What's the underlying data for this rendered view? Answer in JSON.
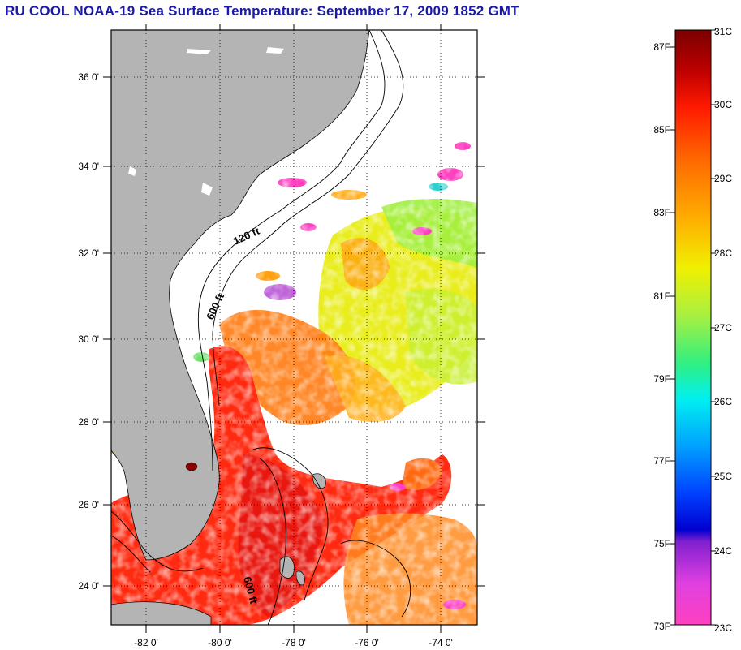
{
  "title": "RU COOL  NOAA-19  Sea Surface Temperature:  September 17, 2009 1852 GMT",
  "map": {
    "lon_ticks": [
      "-82 0'",
      "-80 0'",
      "-78 0'",
      "-76 0'",
      "-74 0'"
    ],
    "lat_ticks": [
      "36 0'",
      "34 0'",
      "32 0'",
      "30 0'",
      "28 0'",
      "26 0'",
      "24 0'"
    ],
    "contour_labels": [
      "120 ft",
      "600 ft",
      "600 ft"
    ],
    "colors": {
      "land": "#b4b4b4",
      "cloud": "#ffffff",
      "ocean_warm": "#ff2a10",
      "ocean_mid": "#ff9a10",
      "ocean_cool": "#e8f000"
    }
  },
  "colorbar": {
    "fahrenheit_labels": [
      "87F",
      "85F",
      "83F",
      "81F",
      "79F",
      "77F",
      "75F",
      "73F"
    ],
    "celsius_labels": [
      "31C",
      "30C",
      "29C",
      "28C",
      "27C",
      "26C",
      "25C",
      "24C",
      "23C"
    ],
    "range_celsius": [
      23,
      31
    ]
  }
}
